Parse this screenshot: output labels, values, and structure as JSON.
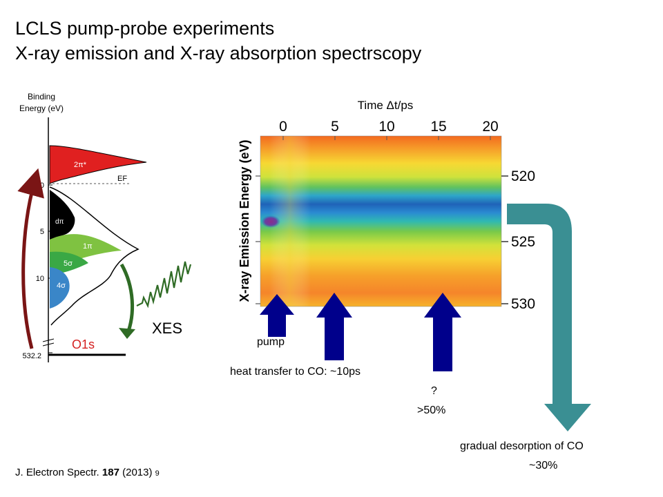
{
  "title": {
    "line1": "LCLS pump-probe experiments",
    "line2": "X-ray emission and X-ray absorption spectrscopy"
  },
  "orbital_diagram": {
    "axis_title_line1": "Binding",
    "axis_title_line2": "Energy (eV)",
    "ticks": [
      "0",
      "5",
      "10",
      "532.2"
    ],
    "orbitals": [
      "2π*",
      "dπ",
      "1π",
      "5σ",
      "4σ"
    ],
    "fermi_label": "EF",
    "core_label": "O1s",
    "xes_label": "XES",
    "colors": {
      "2pi": "#e02020",
      "dpi": "#000000",
      "1pi": "#7fc241",
      "5sigma": "#3aa845",
      "4sigma": "#3a86c8",
      "o1s": "#d42020",
      "xes_arrow": "#2f6b25",
      "absorption_arrow": "#7a1515"
    }
  },
  "heatmap": {
    "top_axis_title": "Time Δt/ps",
    "top_ticks": [
      "0",
      "5",
      "10",
      "15",
      "20"
    ],
    "right_ticks": [
      "520",
      "525",
      "530"
    ],
    "y_axis_title": "X-ray Emission Energy (eV)",
    "colormap": "jet"
  },
  "annotations": {
    "pump": "pump",
    "heat_transfer": "heat transfer to CO: ~10ps",
    "question": "?",
    "question_pct": ">50%",
    "desorption": "gradual desorption of CO",
    "desorption_pct": "~30%",
    "arrow_color": "#00008b",
    "bend_arrow_color": "#3a8f93"
  },
  "citation": {
    "journal": "J. Electron Spectr.",
    "volume": "187",
    "year": "(2013)",
    "page": "9"
  }
}
